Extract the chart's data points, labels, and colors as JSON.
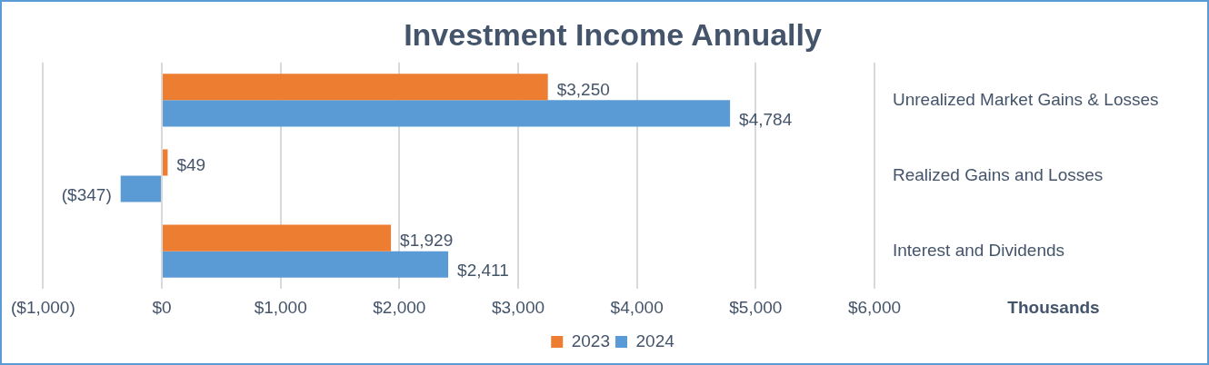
{
  "chart_data": {
    "type": "bar",
    "orientation": "horizontal",
    "title": "Investment Income Annually",
    "xlabel": "Thousands",
    "categories": [
      "Unrealized Market Gains & Losses",
      "Realized Gains and Losses",
      "Interest and Dividends"
    ],
    "series": [
      {
        "name": "2023",
        "color": "#ed7d31",
        "values": [
          3250,
          49,
          1929
        ],
        "value_labels": [
          "$3,250",
          "$49",
          "$1,929"
        ]
      },
      {
        "name": "2024",
        "color": "#5b9bd5",
        "values": [
          4784,
          -347,
          2411
        ],
        "value_labels": [
          "$4,784",
          "($347)",
          "$2,411"
        ]
      }
    ],
    "xlim": [
      -1000,
      6000
    ],
    "xticks": [
      {
        "value": -1000,
        "label": "($1,000)"
      },
      {
        "value": 0,
        "label": "$0"
      },
      {
        "value": 1000,
        "label": "$1,000"
      },
      {
        "value": 2000,
        "label": "$2,000"
      },
      {
        "value": 3000,
        "label": "$3,000"
      },
      {
        "value": 4000,
        "label": "$4,000"
      },
      {
        "value": 5000,
        "label": "$5,000"
      },
      {
        "value": 6000,
        "label": "$6,000"
      }
    ],
    "grid": "x",
    "legend": "bottom"
  }
}
